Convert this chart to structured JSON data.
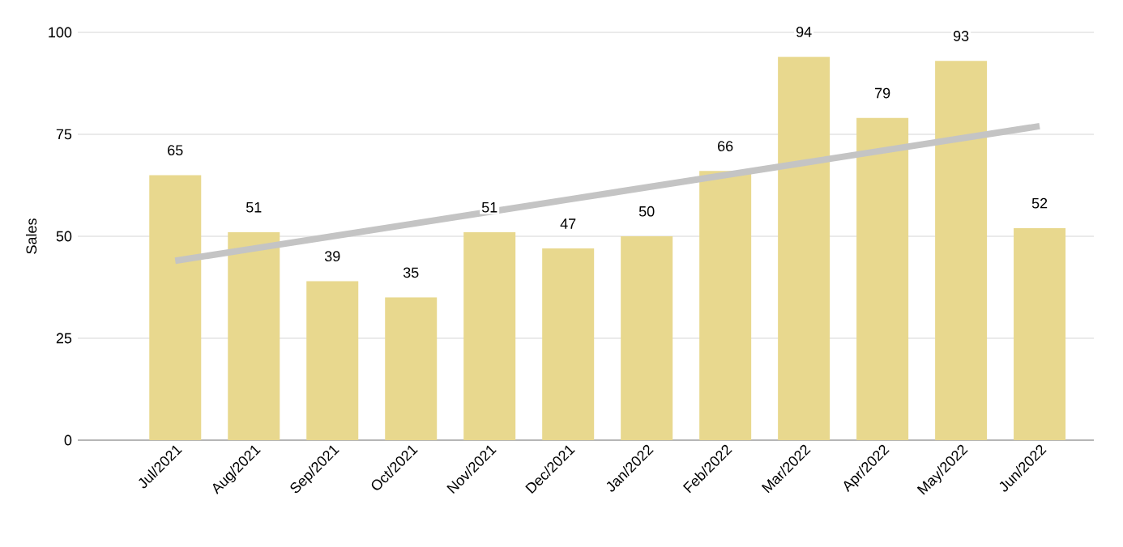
{
  "chart_data": {
    "type": "bar",
    "ylabel": "Sales",
    "categories": [
      "Jul/2021",
      "Aug/2021",
      "Sep/2021",
      "Oct/2021",
      "Nov/2021",
      "Dec/2021",
      "Jan/2022",
      "Feb/2022",
      "Mar/2022",
      "Apr/2022",
      "May/2022",
      "Jun/2022"
    ],
    "series": [
      {
        "color": "#e8d88e",
        "values": [
          65,
          51,
          39,
          35,
          51,
          47,
          50,
          66,
          94,
          79,
          93,
          52
        ],
        "value_labels": [
          "65",
          "51",
          "39",
          "35",
          "51",
          "47",
          "50",
          "66",
          "94",
          "79",
          "93",
          "52"
        ]
      },
      {
        "type": "line",
        "color": "#c4c4c4",
        "values": [
          44,
          47,
          50,
          53,
          56,
          59,
          62,
          65,
          68,
          71,
          74,
          77
        ]
      }
    ],
    "ylim": [
      0,
      100
    ],
    "yticks": [
      0,
      25,
      50,
      75,
      100
    ],
    "grid": "y"
  }
}
